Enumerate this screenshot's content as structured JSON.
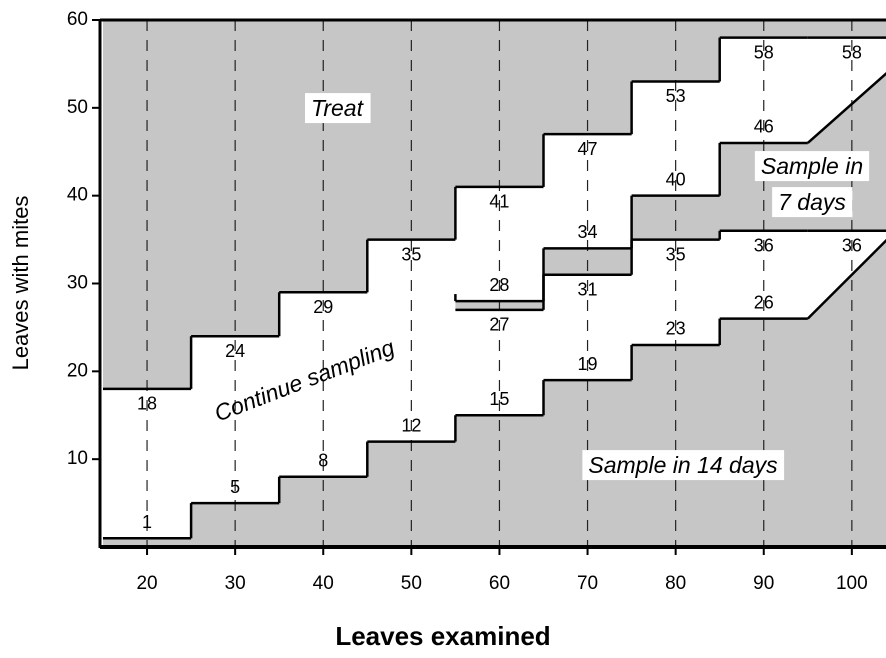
{
  "chart_data": {
    "type": "step",
    "x_label": "Leaves examined",
    "y_label": "Leaves with mites",
    "categories": [
      20,
      30,
      40,
      50,
      60,
      70,
      80,
      90,
      100
    ],
    "series": [
      {
        "color": "#000000",
        "values": [
          18,
          24,
          29,
          35,
          41,
          47,
          53,
          58,
          58
        ]
      },
      {
        "color": "#000000",
        "values": [
          null,
          null,
          null,
          null,
          28,
          34,
          40,
          46,
          null
        ],
        "tail": {
          "x": 104,
          "y": 54
        }
      },
      {
        "color": "#000000",
        "values": [
          null,
          null,
          null,
          null,
          27,
          31,
          35,
          36,
          36
        ]
      },
      {
        "color": "#000000",
        "values": [
          1,
          5,
          8,
          12,
          15,
          19,
          23,
          26,
          null
        ],
        "tail": {
          "x": 104,
          "y": 35
        }
      }
    ],
    "region_color": "#c6c6c6",
    "annotations": [
      "Treat",
      "Continue sampling",
      "Sample in 14 days",
      "Sample in",
      "7 days"
    ],
    "xlim": [
      15,
      104
    ],
    "ylim": [
      0,
      60
    ],
    "xticks": [
      20,
      30,
      40,
      50,
      60,
      70,
      80,
      90,
      100
    ],
    "yticks": [
      10,
      20,
      30,
      40,
      50,
      60
    ],
    "grid": true
  }
}
